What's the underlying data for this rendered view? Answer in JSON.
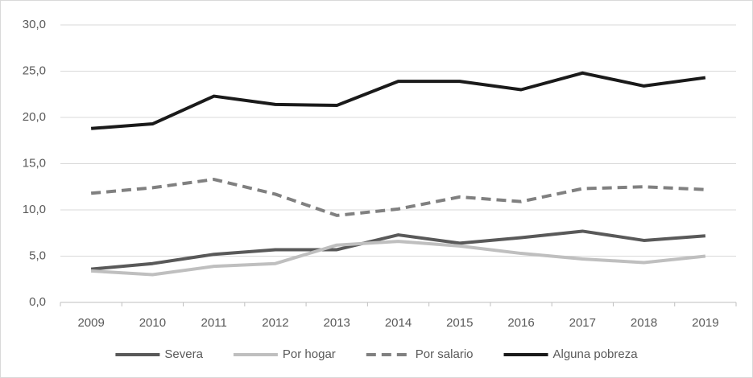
{
  "chart_data": {
    "type": "line",
    "categories": [
      "2009",
      "2010",
      "2011",
      "2012",
      "2013",
      "2014",
      "2015",
      "2016",
      "2017",
      "2018",
      "2019"
    ],
    "series": [
      {
        "name": "Severa",
        "color": "#595959",
        "dashed": false,
        "values": [
          3.6,
          4.2,
          5.2,
          5.7,
          5.7,
          7.3,
          6.4,
          7.0,
          7.7,
          6.7,
          7.2
        ]
      },
      {
        "name": "Por hogar",
        "color": "#bfbfbf",
        "dashed": false,
        "values": [
          3.4,
          3.0,
          3.9,
          4.2,
          6.2,
          6.6,
          6.1,
          5.3,
          4.7,
          4.3,
          5.0
        ]
      },
      {
        "name": "Por salario",
        "color": "#808080",
        "dashed": true,
        "values": [
          11.8,
          12.4,
          13.3,
          11.7,
          9.4,
          10.1,
          11.4,
          10.9,
          12.3,
          12.5,
          12.2
        ]
      },
      {
        "name": "Alguna pobreza",
        "color": "#1a1a1a",
        "dashed": false,
        "values": [
          18.8,
          19.3,
          22.3,
          21.4,
          21.3,
          23.9,
          23.9,
          23.0,
          24.8,
          23.4,
          24.3
        ]
      }
    ],
    "ylim": [
      0,
      30
    ],
    "yticks": [
      {
        "value": 0,
        "label": "0,0"
      },
      {
        "value": 5,
        "label": "5,0"
      },
      {
        "value": 10,
        "label": "10,0"
      },
      {
        "value": 15,
        "label": "15,0"
      },
      {
        "value": 20,
        "label": "20,0"
      },
      {
        "value": 25,
        "label": "25,0"
      },
      {
        "value": 30,
        "label": "30,0"
      }
    ],
    "grid": true,
    "legend": "bottom"
  }
}
